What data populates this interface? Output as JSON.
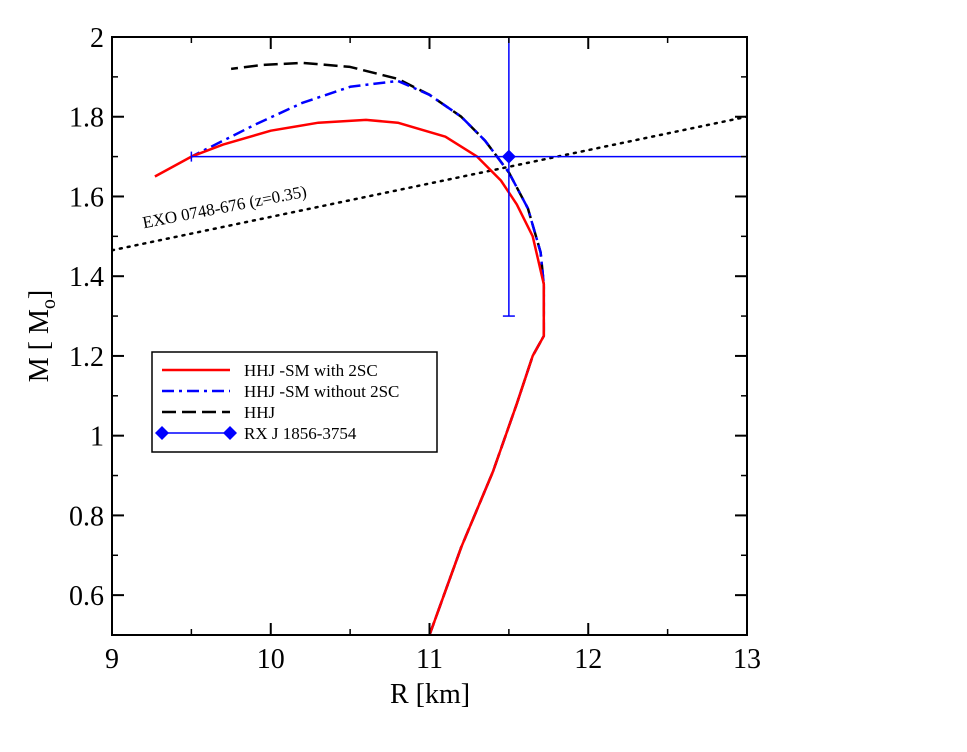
{
  "chart_data": {
    "type": "line",
    "title": "",
    "xlabel": "R [km]",
    "ylabel_main": "M [ M",
    "ylabel_sub": "o",
    "ylabel_end": "]",
    "xlim": [
      9,
      13
    ],
    "ylim": [
      0.5,
      2.0
    ],
    "x_ticks": [
      9,
      10,
      11,
      12,
      13
    ],
    "x_tick_labels": [
      "9",
      "10",
      "11",
      "12",
      "13"
    ],
    "y_ticks": [
      0.6,
      0.8,
      1.0,
      1.2,
      1.4,
      1.6,
      1.8,
      2.0
    ],
    "y_tick_labels": [
      "0.6",
      "0.8",
      "1",
      "1.2",
      "1.4",
      "1.6",
      "1.8",
      "2"
    ],
    "grid": false,
    "legend_position": "middle-left",
    "series": [
      {
        "name": "HHJ -SM with 2SC",
        "color": "#ff0000",
        "style": "solid",
        "x": [
          11.0,
          11.2,
          11.4,
          11.55,
          11.65,
          11.72,
          11.72,
          11.65,
          11.55,
          11.45,
          11.3,
          11.1,
          10.8,
          10.6,
          10.3,
          10.0,
          9.7,
          9.5,
          9.27
        ],
        "y": [
          0.5,
          0.72,
          0.91,
          1.08,
          1.2,
          1.25,
          1.38,
          1.5,
          1.58,
          1.64,
          1.7,
          1.75,
          1.785,
          1.792,
          1.785,
          1.765,
          1.73,
          1.7,
          1.65
        ]
      },
      {
        "name": "HHJ -SM without 2SC",
        "color": "#0000ff",
        "style": "dashdot",
        "x": [
          11.0,
          11.2,
          11.4,
          11.55,
          11.65,
          11.72,
          11.72,
          11.7,
          11.62,
          11.5,
          11.35,
          11.2,
          11.0,
          10.8,
          10.5,
          10.2,
          9.9,
          9.7,
          9.5
        ],
        "y": [
          0.5,
          0.72,
          0.91,
          1.08,
          1.2,
          1.25,
          1.38,
          1.46,
          1.57,
          1.66,
          1.74,
          1.8,
          1.855,
          1.89,
          1.875,
          1.835,
          1.78,
          1.74,
          1.7
        ]
      },
      {
        "name": "HHJ",
        "color": "#000000",
        "style": "dashed",
        "x": [
          11.0,
          11.2,
          11.4,
          11.55,
          11.65,
          11.72,
          11.72,
          11.7,
          11.62,
          11.5,
          11.35,
          11.2,
          11.0,
          10.8,
          10.5,
          10.2,
          9.95,
          9.75
        ],
        "y": [
          0.5,
          0.72,
          0.91,
          1.08,
          1.2,
          1.25,
          1.38,
          1.46,
          1.57,
          1.66,
          1.74,
          1.8,
          1.855,
          1.895,
          1.925,
          1.935,
          1.93,
          1.92
        ]
      },
      {
        "name": "EXO 0748-676 (z=0.35)",
        "color": "#000000",
        "style": "dotted",
        "x": [
          9.0,
          13.0
        ],
        "y": [
          1.465,
          1.8
        ]
      }
    ],
    "points": [
      {
        "name": "RX J 1856-3754",
        "color": "#0000ff",
        "marker": "diamond",
        "x": 11.5,
        "y": 1.7,
        "x_err": [
          9.5,
          13.0
        ],
        "y_err": [
          1.3,
          2.0
        ]
      }
    ],
    "legend": [
      {
        "label": "HHJ -SM with 2SC",
        "color": "#ff0000",
        "style": "solid"
      },
      {
        "label": "HHJ -SM without 2SC",
        "color": "#0000ff",
        "style": "dashdot"
      },
      {
        "label": "HHJ",
        "color": "#000000",
        "style": "dashed"
      },
      {
        "label": "RX J 1856-3754",
        "color": "#0000ff",
        "style": "diamond-line"
      }
    ],
    "annotations": [
      {
        "text": "EXO 0748-676 (z=0.35)",
        "x": 9.2,
        "y": 1.52,
        "angle_deg": -11
      }
    ]
  }
}
